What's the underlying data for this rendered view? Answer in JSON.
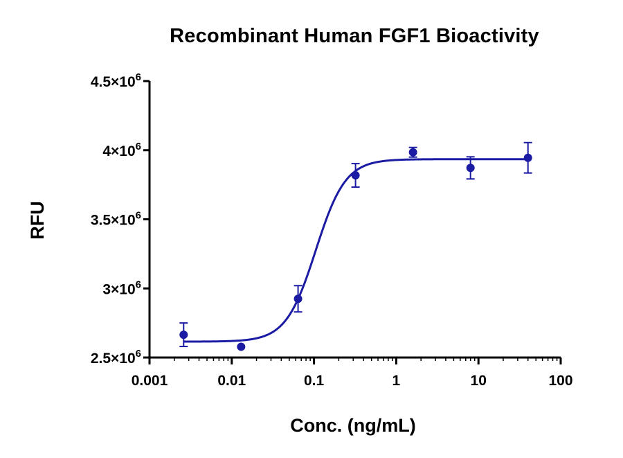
{
  "chart_data": {
    "type": "scatter",
    "title": "Recombinant Human FGF1 Bioactivity",
    "xlabel": "Conc. (ng/mL)",
    "ylabel": "RFU",
    "x_scale": "log",
    "xlim": [
      0.001,
      100
    ],
    "ylim": [
      2500000,
      4500000
    ],
    "x_ticks": [
      0.001,
      0.01,
      0.1,
      1,
      10,
      100
    ],
    "x_tick_labels": [
      "0.001",
      "0.01",
      "0.1",
      "1",
      "10",
      "100"
    ],
    "y_ticks": [
      2500000,
      3000000,
      3500000,
      4000000,
      4500000
    ],
    "y_tick_labels": [
      {
        "mantissa": "2.5",
        "times": "×10",
        "exp": "6"
      },
      {
        "mantissa": "3",
        "times": "×10",
        "exp": "6"
      },
      {
        "mantissa": "3.5",
        "times": "×10",
        "exp": "6"
      },
      {
        "mantissa": "4",
        "times": "×10",
        "exp": "6"
      },
      {
        "mantissa": "4.5",
        "times": "×10",
        "exp": "6"
      }
    ],
    "series": [
      {
        "x": [
          0.0026,
          0.013,
          0.064,
          0.32,
          1.6,
          8.0,
          40
        ],
        "y": [
          2665000,
          2578000,
          2925000,
          3818000,
          3985000,
          3872000,
          3945000
        ],
        "error": [
          85000,
          10000,
          95000,
          85000,
          35000,
          80000,
          110000
        ]
      }
    ],
    "fit": {
      "type": "4PL",
      "bottom": 2615000,
      "top": 3935000,
      "ec50": 0.105,
      "hill": 2.4
    },
    "colors": {
      "series": "#1b1ba3",
      "axes": "#000000"
    },
    "grid": false,
    "legend": "none"
  }
}
